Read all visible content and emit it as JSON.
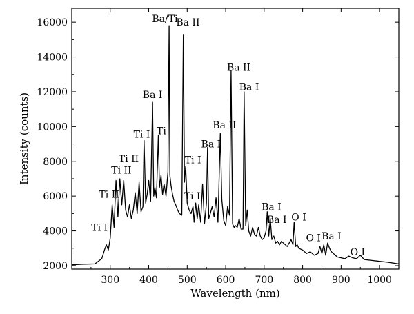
{
  "chart_data": {
    "type": "line",
    "title": "",
    "xlabel": "Wavelength (nm)",
    "ylabel": "Intensity (counts)",
    "xlim": [
      200,
      1050
    ],
    "ylim": [
      1800,
      16800
    ],
    "xticks": [
      300,
      400,
      500,
      600,
      700,
      800,
      900,
      1000
    ],
    "xtick_labels": [
      "300",
      "400",
      "500",
      "600",
      "700",
      "800",
      "900",
      "1000"
    ],
    "yticks": [
      2000,
      4000,
      6000,
      8000,
      10000,
      12000,
      14000,
      16000
    ],
    "ytick_labels": [
      "2000",
      "4000",
      "6000",
      "8000",
      "10000",
      "12000",
      "14000",
      "16000"
    ],
    "grid": false,
    "legend": "none",
    "series": [
      {
        "color": "#000000",
        "x": [
          200,
          230,
          260,
          278,
          285,
          290,
          295,
          300,
          305,
          310,
          315,
          320,
          325,
          330,
          335,
          340,
          345,
          350,
          355,
          360,
          365,
          370,
          375,
          380,
          385,
          388,
          392,
          396,
          400,
          405,
          410,
          413,
          416,
          420,
          425,
          428,
          432,
          436,
          440,
          445,
          450,
          453,
          455,
          458,
          462,
          466,
          470,
          475,
          480,
          486,
          490,
          493,
          496,
          500,
          505,
          510,
          515,
          518,
          522,
          526,
          530,
          535,
          540,
          545,
          550,
          553,
          556,
          560,
          565,
          570,
          575,
          580,
          586,
          590,
          595,
          600,
          605,
          610,
          614,
          618,
          622,
          626,
          630,
          635,
          640,
          645,
          648,
          652,
          656,
          660,
          665,
          670,
          675,
          680,
          685,
          690,
          695,
          700,
          705,
          708,
          712,
          716,
          720,
          725,
          730,
          735,
          740,
          745,
          750,
          760,
          770,
          775,
          778,
          782,
          786,
          790,
          800,
          810,
          820,
          830,
          840,
          845,
          850,
          855,
          860,
          865,
          870,
          875,
          880,
          890,
          900,
          910,
          920,
          930,
          940,
          950,
          960,
          980,
          1000,
          1020,
          1050
        ],
        "y": [
          2050,
          2080,
          2100,
          2400,
          2900,
          3200,
          2900,
          3600,
          5500,
          4200,
          6900,
          4800,
          7000,
          5500,
          6900,
          5200,
          4800,
          5500,
          4700,
          5200,
          6200,
          5000,
          6800,
          5100,
          5400,
          9200,
          5600,
          6100,
          6900,
          5700,
          11400,
          6000,
          6500,
          5900,
          9500,
          6500,
          7200,
          6100,
          6700,
          6000,
          7400,
          15800,
          7200,
          6600,
          6100,
          5700,
          5500,
          5200,
          5000,
          4900,
          15300,
          6800,
          7700,
          5600,
          5200,
          5000,
          5400,
          4500,
          5600,
          4700,
          5500,
          4500,
          6700,
          4400,
          5600,
          8800,
          4700,
          5000,
          5400,
          4800,
          5900,
          4500,
          9600,
          5800,
          4600,
          4300,
          5400,
          4900,
          13200,
          4400,
          4200,
          4300,
          4200,
          4700,
          4100,
          4100,
          12000,
          4300,
          5200,
          4000,
          3700,
          4200,
          3800,
          3700,
          4200,
          3700,
          3500,
          3600,
          4000,
          5100,
          3700,
          4700,
          3500,
          3700,
          3300,
          3400,
          3200,
          3400,
          3300,
          3100,
          3500,
          3200,
          4500,
          3100,
          3200,
          3000,
          2900,
          2700,
          2800,
          2600,
          2700,
          3100,
          2700,
          3200,
          2600,
          3300,
          3000,
          2800,
          2700,
          2500,
          2450,
          2400,
          2550,
          2450,
          2400,
          2600,
          2350,
          2300,
          2250,
          2200,
          2100
        ]
      }
    ],
    "annotations": [
      {
        "text": "Ti I",
        "x": 272,
        "y": 4000
      },
      {
        "text": "Ti II",
        "x": 297,
        "y": 5900
      },
      {
        "text": "Ti II",
        "x": 329,
        "y": 7300
      },
      {
        "text": "Ti II",
        "x": 348,
        "y": 7950
      },
      {
        "text": "Ti I",
        "x": 382,
        "y": 9350
      },
      {
        "text": "Ti",
        "x": 433,
        "y": 9550
      },
      {
        "text": "Ba I",
        "x": 410,
        "y": 11650
      },
      {
        "text": "Ba/Ti",
        "x": 442,
        "y": 16000
      },
      {
        "text": "Ba II",
        "x": 502,
        "y": 15800
      },
      {
        "text": "Ti I",
        "x": 515,
        "y": 7900
      },
      {
        "text": "Ti I",
        "x": 513,
        "y": 5800
      },
      {
        "text": "Ba I",
        "x": 562,
        "y": 8800
      },
      {
        "text": "Ba II",
        "x": 597,
        "y": 9900
      },
      {
        "text": "Ba II",
        "x": 634,
        "y": 13200
      },
      {
        "text": "Ba I",
        "x": 661,
        "y": 12100
      },
      {
        "text": "Ba I",
        "x": 719,
        "y": 5200
      },
      {
        "text": "Ba I",
        "x": 733,
        "y": 4450
      },
      {
        "text": "O I",
        "x": 790,
        "y": 4600
      },
      {
        "text": "O I",
        "x": 828,
        "y": 3400
      },
      {
        "text": "Ba I",
        "x": 875,
        "y": 3500
      },
      {
        "text": "O I",
        "x": 943,
        "y": 2600
      }
    ]
  }
}
